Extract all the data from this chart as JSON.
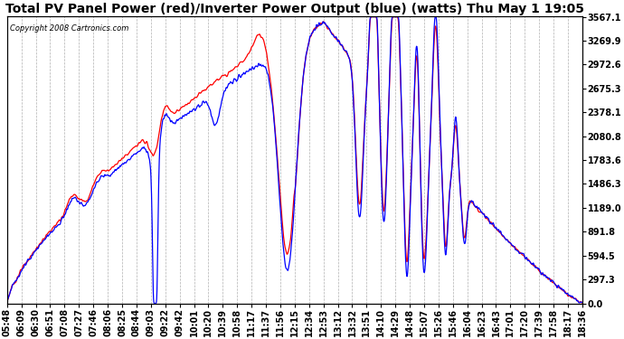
{
  "title": "Total PV Panel Power (red)/Inverter Power Output (blue) (watts) Thu May 1 19:05",
  "copyright": "Copyright 2008 Cartronics.com",
  "ylabel_right_ticks": [
    0.0,
    297.3,
    594.5,
    891.8,
    1189.0,
    1486.3,
    1783.6,
    2080.8,
    2378.1,
    2675.3,
    2972.6,
    3269.9,
    3567.1
  ],
  "x_labels": [
    "05:48",
    "06:09",
    "06:30",
    "06:51",
    "07:08",
    "07:27",
    "07:46",
    "08:06",
    "08:25",
    "08:44",
    "09:03",
    "09:22",
    "09:42",
    "10:01",
    "10:20",
    "10:39",
    "10:58",
    "11:17",
    "11:37",
    "11:56",
    "12:15",
    "12:34",
    "12:53",
    "13:12",
    "13:32",
    "13:51",
    "14:10",
    "14:29",
    "14:48",
    "15:07",
    "15:26",
    "15:46",
    "16:04",
    "16:23",
    "16:43",
    "17:01",
    "17:20",
    "17:39",
    "17:58",
    "18:17",
    "18:36"
  ],
  "background_color": "#ffffff",
  "plot_bg_color": "#ffffff",
  "grid_color": "#b0b0b0",
  "red_color": "#ff0000",
  "blue_color": "#0000ff",
  "title_fontsize": 10,
  "tick_fontsize": 7,
  "ymax": 3567.1,
  "ymin": 0.0
}
